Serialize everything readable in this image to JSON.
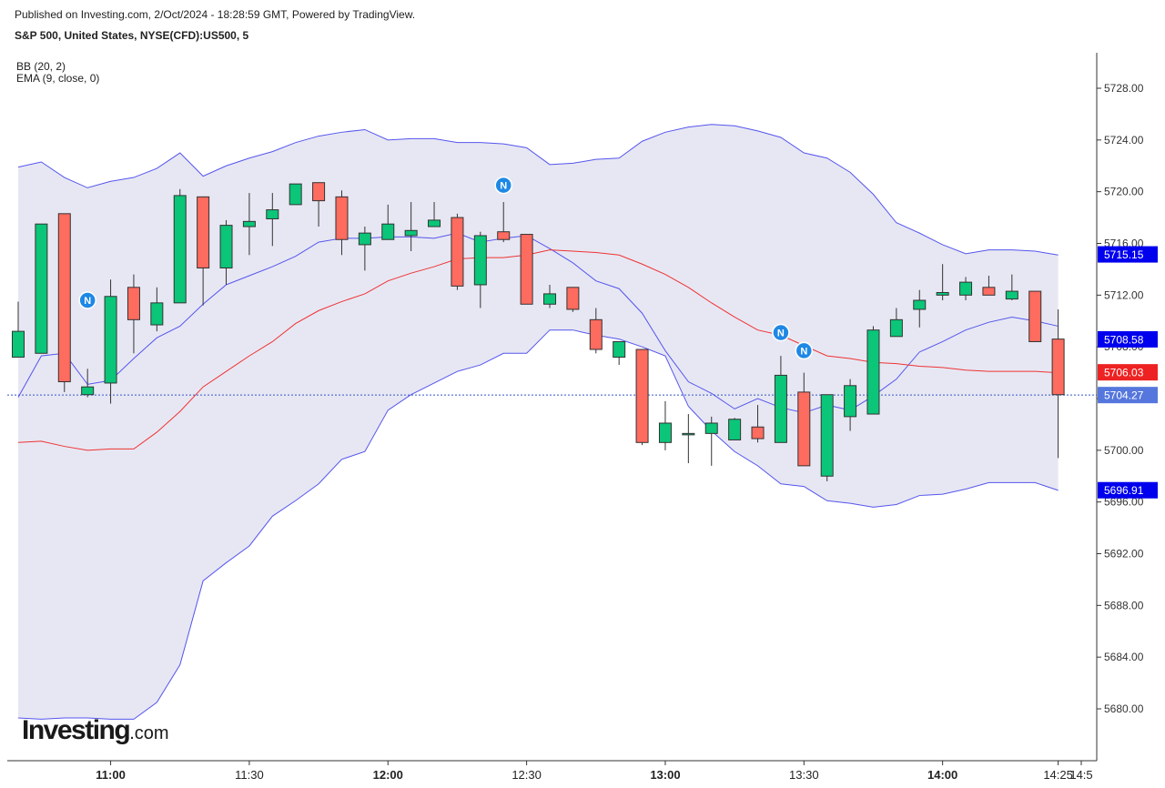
{
  "header": {
    "publish_line": "Published on Investing.com, 2/Oct/2024 - 18:28:59 GMT, Powered by TradingView.",
    "title": "S&P 500, United States, NYSE(CFD):US500, 5",
    "indicators": [
      "BB (20, 2)",
      "EMA (9, close, 0)"
    ]
  },
  "logo": {
    "main": "Investing",
    "suffix": ".com"
  },
  "colors": {
    "up": "#0bc579",
    "down": "#fe6b5f",
    "candle_border": "#333333",
    "bb_band": "#5555ee",
    "bb_fill": "#e7e7f3",
    "ema": "#ee3333",
    "news_badge": "#1e88e5",
    "last_price_line": "#3355cc"
  },
  "chart_data": {
    "type": "candlestick",
    "interval_minutes": 5,
    "x_time_range": [
      "10:40",
      "14:30"
    ],
    "ylim": [
      5676,
      5730
    ],
    "y_ticks": [
      "5680.00",
      "5684.00",
      "5688.00",
      "5692.00",
      "5696.00",
      "5700.00",
      "5704.00",
      "5708.00",
      "5712.00",
      "5716.00",
      "5720.00",
      "5724.00",
      "5728.00"
    ],
    "x_ticks": [
      {
        "label": "11:00",
        "time": "11:00",
        "major": true
      },
      {
        "label": "11:30",
        "time": "11:30",
        "major": false
      },
      {
        "label": "12:00",
        "time": "12:00",
        "major": true
      },
      {
        "label": "12:30",
        "time": "12:30",
        "major": false
      },
      {
        "label": "13:00",
        "time": "13:00",
        "major": true
      },
      {
        "label": "13:30",
        "time": "13:30",
        "major": false
      },
      {
        "label": "14:00",
        "time": "14:00",
        "major": true
      },
      {
        "label": "14:25",
        "time": "14:25",
        "major": false
      },
      {
        "label": "14:5",
        "time": "14:30",
        "major": false
      }
    ],
    "candles": [
      {
        "t": "10:40",
        "o": 5707.2,
        "h": 5711.5,
        "l": 5707.2,
        "c": 5709.2
      },
      {
        "t": "10:45",
        "o": 5707.5,
        "h": 5717.5,
        "l": 5707.5,
        "c": 5717.5
      },
      {
        "t": "10:50",
        "o": 5718.3,
        "h": 5718.3,
        "l": 5704.5,
        "c": 5705.3
      },
      {
        "t": "10:55",
        "o": 5704.3,
        "h": 5706.3,
        "l": 5704.1,
        "c": 5704.9
      },
      {
        "t": "11:00",
        "o": 5705.2,
        "h": 5713.2,
        "l": 5703.6,
        "c": 5711.9
      },
      {
        "t": "11:05",
        "o": 5712.6,
        "h": 5713.6,
        "l": 5707.5,
        "c": 5710.1
      },
      {
        "t": "11:10",
        "o": 5709.7,
        "h": 5712.6,
        "l": 5709.2,
        "c": 5711.4
      },
      {
        "t": "11:15",
        "o": 5711.4,
        "h": 5720.2,
        "l": 5711.4,
        "c": 5719.7
      },
      {
        "t": "11:20",
        "o": 5719.6,
        "h": 5719.6,
        "l": 5711.2,
        "c": 5714.1
      },
      {
        "t": "11:25",
        "o": 5714.1,
        "h": 5717.8,
        "l": 5712.8,
        "c": 5717.4
      },
      {
        "t": "11:30",
        "o": 5717.3,
        "h": 5719.9,
        "l": 5715.1,
        "c": 5717.7
      },
      {
        "t": "11:35",
        "o": 5717.9,
        "h": 5719.9,
        "l": 5715.8,
        "c": 5718.6
      },
      {
        "t": "11:40",
        "o": 5719.0,
        "h": 5720.6,
        "l": 5719.0,
        "c": 5720.6
      },
      {
        "t": "11:45",
        "o": 5720.7,
        "h": 5720.7,
        "l": 5717.3,
        "c": 5719.3
      },
      {
        "t": "11:50",
        "o": 5719.6,
        "h": 5720.1,
        "l": 5715.1,
        "c": 5716.3
      },
      {
        "t": "11:55",
        "o": 5715.9,
        "h": 5717.3,
        "l": 5713.9,
        "c": 5716.8
      },
      {
        "t": "12:00",
        "o": 5716.3,
        "h": 5719.0,
        "l": 5716.3,
        "c": 5717.5
      },
      {
        "t": "12:05",
        "o": 5716.6,
        "h": 5719.2,
        "l": 5715.4,
        "c": 5717.0
      },
      {
        "t": "12:10",
        "o": 5717.3,
        "h": 5719.2,
        "l": 5717.3,
        "c": 5717.8
      },
      {
        "t": "12:15",
        "o": 5718.0,
        "h": 5718.3,
        "l": 5712.4,
        "c": 5712.7
      },
      {
        "t": "12:20",
        "o": 5712.8,
        "h": 5716.9,
        "l": 5711.0,
        "c": 5716.6
      },
      {
        "t": "12:25",
        "o": 5716.9,
        "h": 5719.2,
        "l": 5716.1,
        "c": 5716.3
      },
      {
        "t": "12:30",
        "o": 5716.7,
        "h": 5716.7,
        "l": 5711.3,
        "c": 5711.3
      },
      {
        "t": "12:35",
        "o": 5711.3,
        "h": 5712.8,
        "l": 5711.0,
        "c": 5712.1
      },
      {
        "t": "12:40",
        "o": 5712.6,
        "h": 5712.6,
        "l": 5710.7,
        "c": 5710.9
      },
      {
        "t": "12:45",
        "o": 5710.1,
        "h": 5711.0,
        "l": 5707.5,
        "c": 5707.8
      },
      {
        "t": "12:50",
        "o": 5707.2,
        "h": 5708.3,
        "l": 5706.6,
        "c": 5708.4
      },
      {
        "t": "12:55",
        "o": 5707.8,
        "h": 5707.8,
        "l": 5700.4,
        "c": 5700.6
      },
      {
        "t": "13:00",
        "o": 5700.6,
        "h": 5703.8,
        "l": 5700.0,
        "c": 5702.1
      },
      {
        "t": "13:05",
        "o": 5701.2,
        "h": 5702.8,
        "l": 5699.0,
        "c": 5701.3
      },
      {
        "t": "13:10",
        "o": 5701.3,
        "h": 5702.6,
        "l": 5698.8,
        "c": 5702.1
      },
      {
        "t": "13:15",
        "o": 5700.8,
        "h": 5702.5,
        "l": 5700.8,
        "c": 5702.4
      },
      {
        "t": "13:20",
        "o": 5701.8,
        "h": 5703.5,
        "l": 5700.6,
        "c": 5700.9
      },
      {
        "t": "13:25",
        "o": 5700.6,
        "h": 5707.3,
        "l": 5700.6,
        "c": 5705.8
      },
      {
        "t": "13:30",
        "o": 5704.5,
        "h": 5706.0,
        "l": 5698.8,
        "c": 5698.8
      },
      {
        "t": "13:35",
        "o": 5698.0,
        "h": 5704.3,
        "l": 5697.6,
        "c": 5704.3
      },
      {
        "t": "13:40",
        "o": 5702.6,
        "h": 5705.5,
        "l": 5701.5,
        "c": 5705.0
      },
      {
        "t": "13:45",
        "o": 5702.8,
        "h": 5709.6,
        "l": 5702.8,
        "c": 5709.3
      },
      {
        "t": "13:50",
        "o": 5708.8,
        "h": 5711.0,
        "l": 5708.8,
        "c": 5710.1
      },
      {
        "t": "13:55",
        "o": 5710.9,
        "h": 5712.4,
        "l": 5709.5,
        "c": 5711.6
      },
      {
        "t": "14:00",
        "o": 5712.0,
        "h": 5714.4,
        "l": 5711.6,
        "c": 5712.2
      },
      {
        "t": "14:05",
        "o": 5712.0,
        "h": 5713.4,
        "l": 5711.6,
        "c": 5713.0
      },
      {
        "t": "14:10",
        "o": 5712.6,
        "h": 5713.5,
        "l": 5712.0,
        "c": 5712.0
      },
      {
        "t": "14:15",
        "o": 5711.7,
        "h": 5713.6,
        "l": 5711.6,
        "c": 5712.3
      },
      {
        "t": "14:20",
        "o": 5712.3,
        "h": 5712.3,
        "l": 5708.4,
        "c": 5708.4
      },
      {
        "t": "14:25",
        "o": 5708.6,
        "h": 5710.9,
        "l": 5699.4,
        "c": 5704.3
      }
    ],
    "bb_upper": [
      [
        "10:40",
        5721.9
      ],
      [
        "10:45",
        5722.3
      ],
      [
        "10:50",
        5721.1
      ],
      [
        "10:55",
        5720.3
      ],
      [
        "11:00",
        5720.8
      ],
      [
        "11:05",
        5721.1
      ],
      [
        "11:10",
        5721.8
      ],
      [
        "11:15",
        5723.0
      ],
      [
        "11:20",
        5721.2
      ],
      [
        "11:25",
        5722.0
      ],
      [
        "11:30",
        5722.6
      ],
      [
        "11:35",
        5723.1
      ],
      [
        "11:40",
        5723.8
      ],
      [
        "11:45",
        5724.3
      ],
      [
        "11:50",
        5724.6
      ],
      [
        "11:55",
        5724.8
      ],
      [
        "12:00",
        5724.0
      ],
      [
        "12:05",
        5724.1
      ],
      [
        "12:10",
        5724.1
      ],
      [
        "12:15",
        5723.8
      ],
      [
        "12:20",
        5723.8
      ],
      [
        "12:25",
        5723.7
      ],
      [
        "12:30",
        5723.4
      ],
      [
        "12:35",
        5722.1
      ],
      [
        "12:40",
        5722.2
      ],
      [
        "12:45",
        5722.5
      ],
      [
        "12:50",
        5722.6
      ],
      [
        "12:55",
        5723.9
      ],
      [
        "13:00",
        5724.6
      ],
      [
        "13:05",
        5725.0
      ],
      [
        "13:10",
        5725.2
      ],
      [
        "13:15",
        5725.1
      ],
      [
        "13:20",
        5724.7
      ],
      [
        "13:25",
        5724.2
      ],
      [
        "13:30",
        5723.0
      ],
      [
        "13:35",
        5722.6
      ],
      [
        "13:40",
        5721.5
      ],
      [
        "13:45",
        5719.8
      ],
      [
        "13:50",
        5717.6
      ],
      [
        "13:55",
        5716.8
      ],
      [
        "14:00",
        5715.9
      ],
      [
        "14:05",
        5715.2
      ],
      [
        "14:10",
        5715.5
      ],
      [
        "14:15",
        5715.5
      ],
      [
        "14:20",
        5715.4
      ],
      [
        "14:25",
        5715.1
      ]
    ],
    "bb_lower": [
      [
        "10:40",
        5679.3
      ],
      [
        "10:45",
        5679.2
      ],
      [
        "10:50",
        5679.3
      ],
      [
        "10:55",
        5679.3
      ],
      [
        "11:00",
        5679.2
      ],
      [
        "11:05",
        5679.2
      ],
      [
        "11:10",
        5680.5
      ],
      [
        "11:15",
        5683.4
      ],
      [
        "11:20",
        5689.9
      ],
      [
        "11:25",
        5691.3
      ],
      [
        "11:30",
        5692.6
      ],
      [
        "11:35",
        5694.9
      ],
      [
        "11:40",
        5696.1
      ],
      [
        "11:45",
        5697.4
      ],
      [
        "11:50",
        5699.3
      ],
      [
        "11:55",
        5699.9
      ],
      [
        "12:00",
        5703.1
      ],
      [
        "12:05",
        5704.3
      ],
      [
        "12:10",
        5705.2
      ],
      [
        "12:15",
        5706.1
      ],
      [
        "12:20",
        5706.6
      ],
      [
        "12:25",
        5707.5
      ],
      [
        "12:30",
        5707.5
      ],
      [
        "12:35",
        5709.3
      ],
      [
        "12:40",
        5709.3
      ],
      [
        "12:45",
        5708.9
      ],
      [
        "12:50",
        5708.6
      ],
      [
        "12:55",
        5708.0
      ],
      [
        "13:00",
        5707.3
      ],
      [
        "13:05",
        5703.4
      ],
      [
        "13:10",
        5701.5
      ],
      [
        "13:15",
        5699.9
      ],
      [
        "13:20",
        5698.8
      ],
      [
        "13:25",
        5697.4
      ],
      [
        "13:30",
        5697.2
      ],
      [
        "13:35",
        5696.1
      ],
      [
        "13:40",
        5695.9
      ],
      [
        "13:45",
        5695.6
      ],
      [
        "13:50",
        5695.8
      ],
      [
        "13:55",
        5696.5
      ],
      [
        "14:00",
        5696.6
      ],
      [
        "14:05",
        5697.0
      ],
      [
        "14:10",
        5697.5
      ],
      [
        "14:15",
        5697.5
      ],
      [
        "14:20",
        5697.5
      ],
      [
        "14:25",
        5696.9
      ]
    ],
    "bb_middle": [
      [
        "10:40",
        5704.1
      ],
      [
        "10:45",
        5707.3
      ],
      [
        "10:50",
        5707.5
      ],
      [
        "10:55",
        5705.1
      ],
      [
        "11:00",
        5705.4
      ],
      [
        "11:05",
        5707.1
      ],
      [
        "11:10",
        5708.7
      ],
      [
        "11:15",
        5709.6
      ],
      [
        "11:20",
        5711.3
      ],
      [
        "11:25",
        5712.8
      ],
      [
        "11:30",
        5713.5
      ],
      [
        "11:35",
        5714.2
      ],
      [
        "11:40",
        5715.0
      ],
      [
        "11:45",
        5716.1
      ],
      [
        "11:50",
        5716.4
      ],
      [
        "11:55",
        5716.4
      ],
      [
        "12:00",
        5716.5
      ],
      [
        "12:05",
        5716.5
      ],
      [
        "12:10",
        5716.4
      ],
      [
        "12:15",
        5716.8
      ],
      [
        "12:20",
        5716.1
      ],
      [
        "12:25",
        5716.4
      ],
      [
        "12:30",
        5716.6
      ],
      [
        "12:35",
        5715.6
      ],
      [
        "12:40",
        5714.5
      ],
      [
        "12:45",
        5713.1
      ],
      [
        "12:50",
        5712.5
      ],
      [
        "12:55",
        5710.6
      ],
      [
        "13:00",
        5707.7
      ],
      [
        "13:05",
        5705.3
      ],
      [
        "13:10",
        5704.4
      ],
      [
        "13:15",
        5703.2
      ],
      [
        "13:20",
        5704.0
      ],
      [
        "13:25",
        5703.3
      ],
      [
        "13:30",
        5702.9
      ],
      [
        "13:35",
        5703.5
      ],
      [
        "13:40",
        5703.1
      ],
      [
        "13:45",
        5704.2
      ],
      [
        "13:50",
        5705.5
      ],
      [
        "13:55",
        5707.6
      ],
      [
        "14:00",
        5708.4
      ],
      [
        "14:05",
        5709.3
      ],
      [
        "14:10",
        5709.9
      ],
      [
        "14:15",
        5710.3
      ],
      [
        "14:20",
        5710.0
      ],
      [
        "14:25",
        5709.6
      ]
    ],
    "ema": [
      [
        "10:40",
        5700.6
      ],
      [
        "10:45",
        5700.7
      ],
      [
        "10:50",
        5700.3
      ],
      [
        "10:55",
        5700.0
      ],
      [
        "11:00",
        5700.1
      ],
      [
        "11:05",
        5700.1
      ],
      [
        "11:10",
        5701.4
      ],
      [
        "11:15",
        5703.0
      ],
      [
        "11:20",
        5704.9
      ],
      [
        "11:25",
        5706.1
      ],
      [
        "11:30",
        5707.3
      ],
      [
        "11:35",
        5708.4
      ],
      [
        "11:40",
        5709.8
      ],
      [
        "11:45",
        5710.8
      ],
      [
        "11:50",
        5711.5
      ],
      [
        "11:55",
        5712.1
      ],
      [
        "12:00",
        5713.1
      ],
      [
        "12:05",
        5713.7
      ],
      [
        "12:10",
        5714.2
      ],
      [
        "12:15",
        5714.8
      ],
      [
        "12:20",
        5714.9
      ],
      [
        "12:25",
        5714.9
      ],
      [
        "12:30",
        5715.1
      ],
      [
        "12:35",
        5715.5
      ],
      [
        "12:40",
        5715.4
      ],
      [
        "12:45",
        5715.3
      ],
      [
        "12:50",
        5715.1
      ],
      [
        "12:55",
        5714.4
      ],
      [
        "13:00",
        5713.6
      ],
      [
        "13:05",
        5712.6
      ],
      [
        "13:10",
        5711.4
      ],
      [
        "13:15",
        5710.3
      ],
      [
        "13:20",
        5709.3
      ],
      [
        "13:25",
        5708.9
      ],
      [
        "13:30",
        5708.1
      ],
      [
        "13:35",
        5707.3
      ],
      [
        "13:40",
        5707.1
      ],
      [
        "13:45",
        5706.8
      ],
      [
        "13:50",
        5706.7
      ],
      [
        "13:55",
        5706.5
      ],
      [
        "14:00",
        5706.4
      ],
      [
        "14:05",
        5706.2
      ],
      [
        "14:10",
        5706.1
      ],
      [
        "14:15",
        5706.1
      ],
      [
        "14:20",
        5706.1
      ],
      [
        "14:25",
        5706.0
      ]
    ],
    "news_markers": [
      {
        "t": "10:55",
        "price": 5711.6,
        "label": "N"
      },
      {
        "t": "12:25",
        "price": 5720.5,
        "label": "N"
      },
      {
        "t": "13:25",
        "price": 5709.1,
        "label": "N"
      },
      {
        "t": "13:30",
        "price": 5707.7,
        "label": "N"
      }
    ],
    "price_badges": [
      {
        "label": "5715.15",
        "value": 5715.15,
        "color": "#0000ee"
      },
      {
        "label": "5708.58",
        "value": 5708.58,
        "color": "#0000ee"
      },
      {
        "label": "5706.03",
        "value": 5706.03,
        "color": "#ee2222"
      },
      {
        "label": "5704.27",
        "value": 5704.27,
        "color": "#5577dd"
      },
      {
        "label": "5696.91",
        "value": 5696.91,
        "color": "#0000ee"
      }
    ],
    "last_price": 5704.27
  }
}
